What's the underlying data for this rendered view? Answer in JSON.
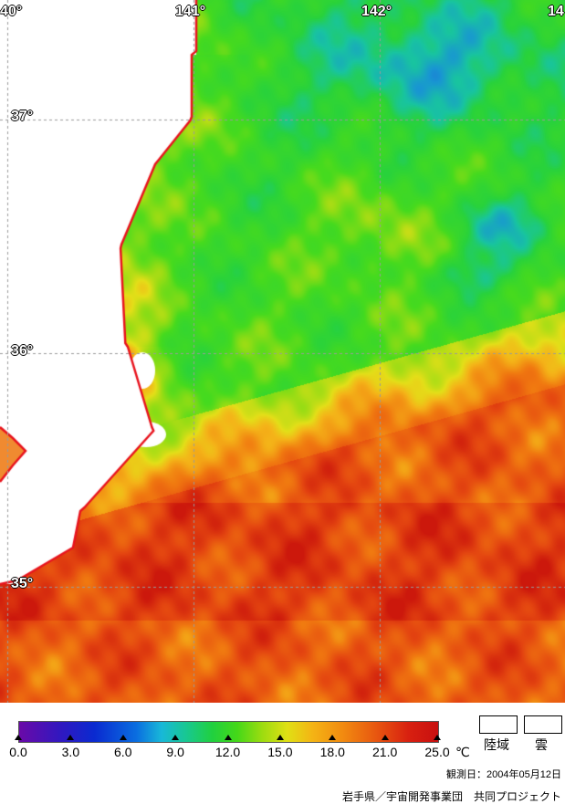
{
  "map": {
    "longitude_labels": [
      "40°",
      "141°",
      "142°",
      "14"
    ],
    "latitude_labels": [
      "37°",
      "36°",
      "35°"
    ],
    "coastline_color": "#e8141e",
    "grid_color": "#9a9a9a",
    "land_color": "#ffffff"
  },
  "legend": {
    "tick_labels": [
      "0.0",
      "3.0",
      "6.0",
      "9.0",
      "12.0",
      "15.0",
      "18.0",
      "21.0",
      "25.0"
    ],
    "unit": "℃",
    "colorbar_colors": [
      "#6a0aa8",
      "#0a2ad0",
      "#18b8d8",
      "#20d040",
      "#e0e014",
      "#f28c10",
      "#d82010",
      "#c81010"
    ],
    "land_label": "陸域",
    "cloud_label": "雲",
    "observation_date": "観測日：2004年05月12日",
    "credit": "岩手県／宇宙開発事業団　共同プロジェクト"
  }
}
